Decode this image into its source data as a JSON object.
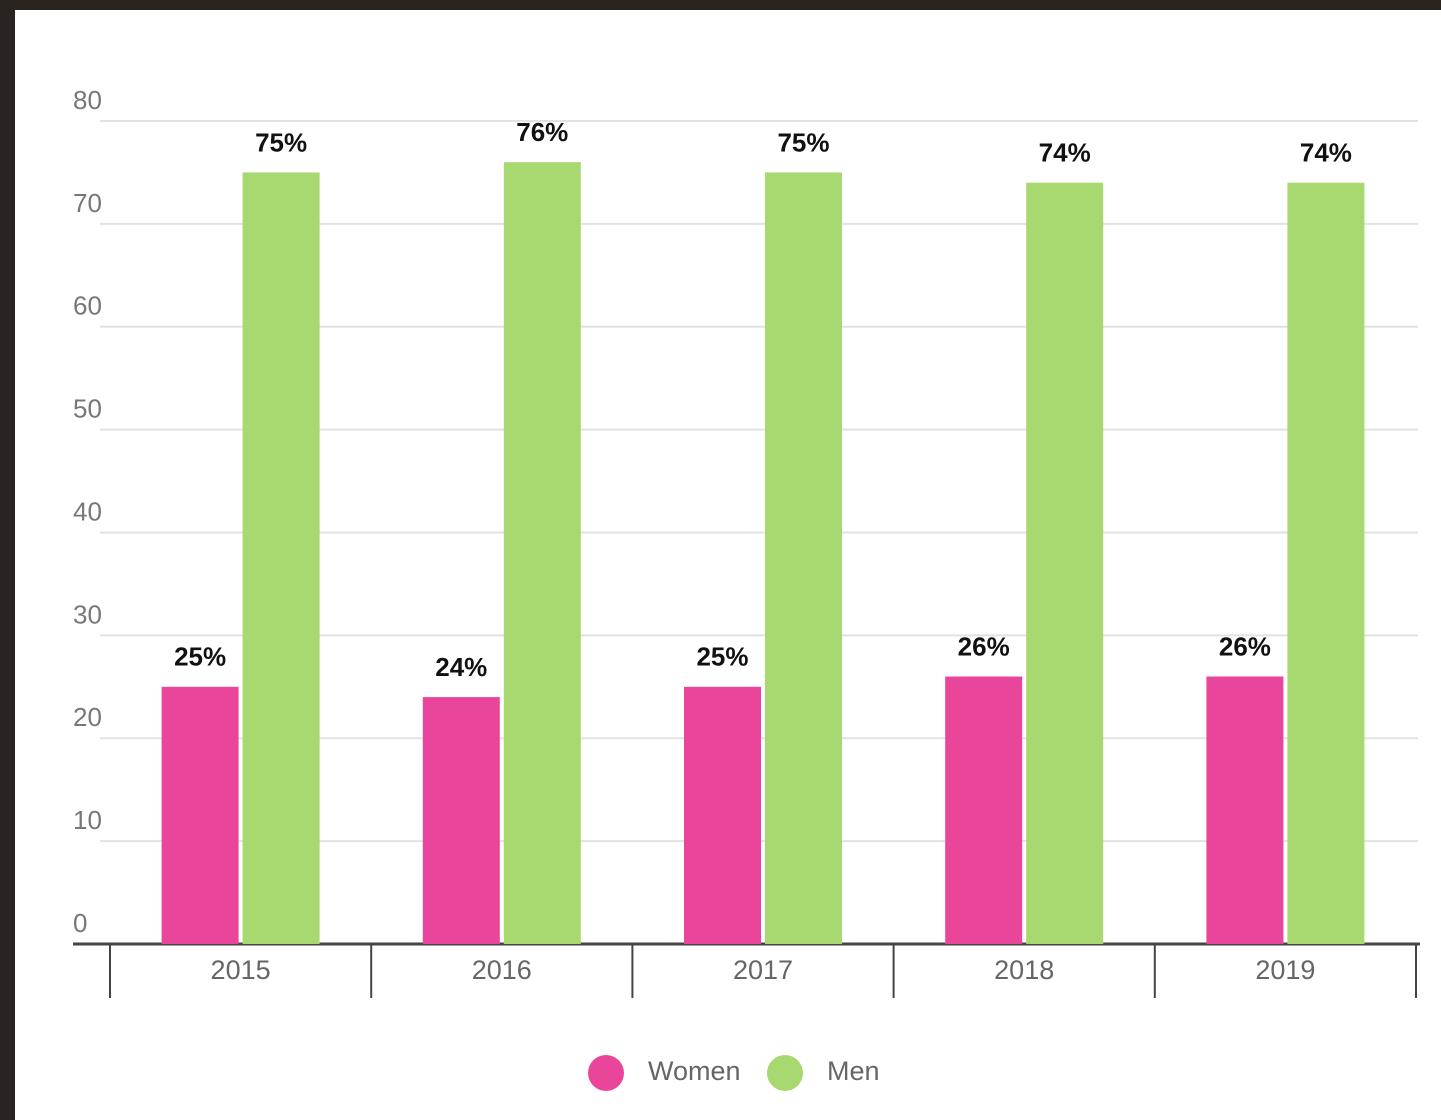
{
  "chart_data": {
    "type": "bar",
    "categories": [
      "2015",
      "2016",
      "2017",
      "2018",
      "2019"
    ],
    "series": [
      {
        "name": "Women",
        "color": "#e8459b",
        "values": [
          25,
          24,
          25,
          26,
          26
        ],
        "value_labels": [
          "25%",
          "24%",
          "25%",
          "26%",
          "26%"
        ]
      },
      {
        "name": "Men",
        "color": "#a8d870",
        "values": [
          75,
          76,
          75,
          74,
          74
        ],
        "value_labels": [
          "75%",
          "76%",
          "75%",
          "74%",
          "74%"
        ]
      }
    ],
    "ylim": [
      0,
      80
    ],
    "yticks": [
      0,
      10,
      20,
      30,
      40,
      50,
      60,
      70,
      80
    ],
    "grid": true,
    "legend": "bottom"
  }
}
